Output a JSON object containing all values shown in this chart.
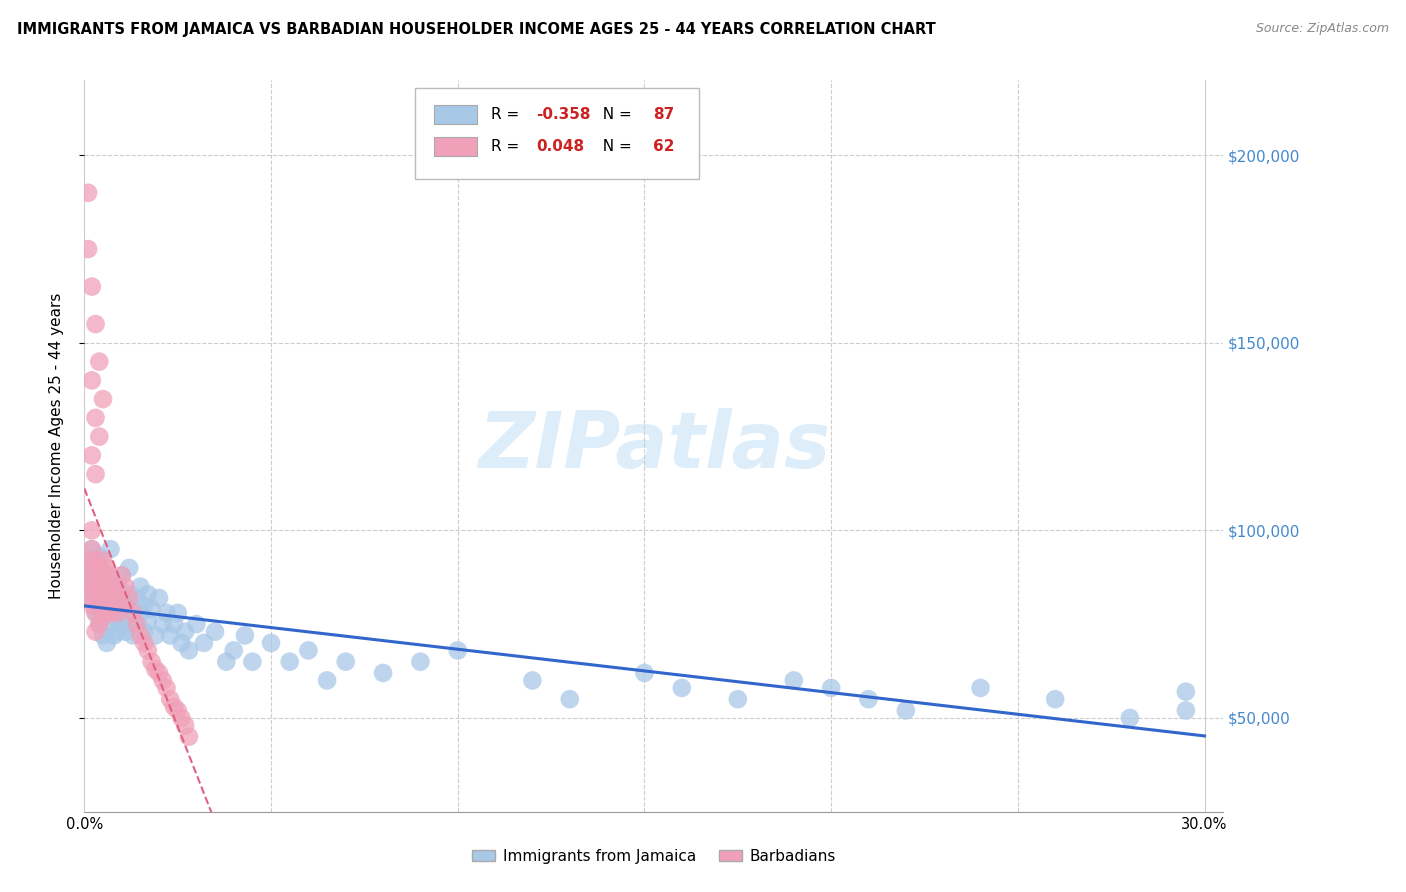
{
  "title": "IMMIGRANTS FROM JAMAICA VS BARBADIAN HOUSEHOLDER INCOME AGES 25 - 44 YEARS CORRELATION CHART",
  "source": "Source: ZipAtlas.com",
  "ylabel": "Householder Income Ages 25 - 44 years",
  "ytick_values": [
    50000,
    100000,
    150000,
    200000
  ],
  "ylim": [
    25000,
    220000
  ],
  "xlim": [
    0.0,
    0.305
  ],
  "r_jamaica": -0.358,
  "n_jamaica": 87,
  "r_barbadian": 0.048,
  "n_barbadian": 62,
  "blue_color": "#a8c8e8",
  "pink_color": "#f0a0b8",
  "line_blue": "#3366cc",
  "line_pink": "#e06080",
  "watermark": "ZIPatlas",
  "legend_label_1": "Immigrants from Jamaica",
  "legend_label_2": "Barbadians",
  "jamaica_x": [
    0.001,
    0.001,
    0.002,
    0.002,
    0.002,
    0.003,
    0.003,
    0.003,
    0.003,
    0.004,
    0.004,
    0.004,
    0.005,
    0.005,
    0.005,
    0.005,
    0.006,
    0.006,
    0.006,
    0.006,
    0.007,
    0.007,
    0.007,
    0.008,
    0.008,
    0.008,
    0.009,
    0.009,
    0.009,
    0.01,
    0.01,
    0.01,
    0.011,
    0.011,
    0.012,
    0.012,
    0.012,
    0.013,
    0.013,
    0.014,
    0.014,
    0.015,
    0.015,
    0.016,
    0.016,
    0.017,
    0.017,
    0.018,
    0.019,
    0.02,
    0.021,
    0.022,
    0.023,
    0.024,
    0.025,
    0.026,
    0.027,
    0.028,
    0.03,
    0.032,
    0.035,
    0.038,
    0.04,
    0.043,
    0.045,
    0.05,
    0.055,
    0.06,
    0.065,
    0.07,
    0.08,
    0.09,
    0.1,
    0.12,
    0.13,
    0.15,
    0.16,
    0.175,
    0.19,
    0.2,
    0.21,
    0.22,
    0.24,
    0.26,
    0.28,
    0.295,
    0.295
  ],
  "jamaica_y": [
    92000,
    87000,
    95000,
    88000,
    83000,
    90000,
    85000,
    80000,
    78000,
    93000,
    86000,
    75000,
    88000,
    82000,
    77000,
    72000,
    85000,
    79000,
    74000,
    70000,
    95000,
    88000,
    80000,
    83000,
    77000,
    72000,
    85000,
    79000,
    73000,
    88000,
    82000,
    75000,
    80000,
    73000,
    90000,
    83000,
    76000,
    79000,
    72000,
    82000,
    75000,
    85000,
    78000,
    80000,
    73000,
    83000,
    76000,
    79000,
    72000,
    82000,
    75000,
    78000,
    72000,
    75000,
    78000,
    70000,
    73000,
    68000,
    75000,
    70000,
    73000,
    65000,
    68000,
    72000,
    65000,
    70000,
    65000,
    68000,
    60000,
    65000,
    62000,
    65000,
    68000,
    60000,
    55000,
    62000,
    58000,
    55000,
    60000,
    58000,
    55000,
    52000,
    58000,
    55000,
    50000,
    57000,
    52000
  ],
  "barbadian_x": [
    0.001,
    0.001,
    0.001,
    0.002,
    0.002,
    0.002,
    0.002,
    0.003,
    0.003,
    0.003,
    0.003,
    0.003,
    0.004,
    0.004,
    0.004,
    0.004,
    0.005,
    0.005,
    0.005,
    0.005,
    0.006,
    0.006,
    0.006,
    0.007,
    0.007,
    0.007,
    0.008,
    0.008,
    0.009,
    0.009,
    0.01,
    0.01,
    0.011,
    0.012,
    0.013,
    0.014,
    0.015,
    0.016,
    0.017,
    0.018,
    0.019,
    0.02,
    0.021,
    0.022,
    0.023,
    0.024,
    0.025,
    0.026,
    0.027,
    0.028,
    0.001,
    0.002,
    0.003,
    0.004,
    0.005,
    0.003,
    0.004,
    0.002,
    0.002,
    0.003,
    0.001,
    0.002
  ],
  "barbadian_y": [
    92000,
    87000,
    82000,
    95000,
    90000,
    85000,
    80000,
    92000,
    88000,
    83000,
    78000,
    73000,
    90000,
    85000,
    80000,
    75000,
    92000,
    87000,
    82000,
    77000,
    90000,
    85000,
    80000,
    88000,
    83000,
    78000,
    85000,
    80000,
    83000,
    78000,
    88000,
    80000,
    85000,
    82000,
    78000,
    75000,
    72000,
    70000,
    68000,
    65000,
    63000,
    62000,
    60000,
    58000,
    55000,
    53000,
    52000,
    50000,
    48000,
    45000,
    175000,
    165000,
    155000,
    145000,
    135000,
    130000,
    125000,
    140000,
    120000,
    115000,
    190000,
    100000
  ]
}
